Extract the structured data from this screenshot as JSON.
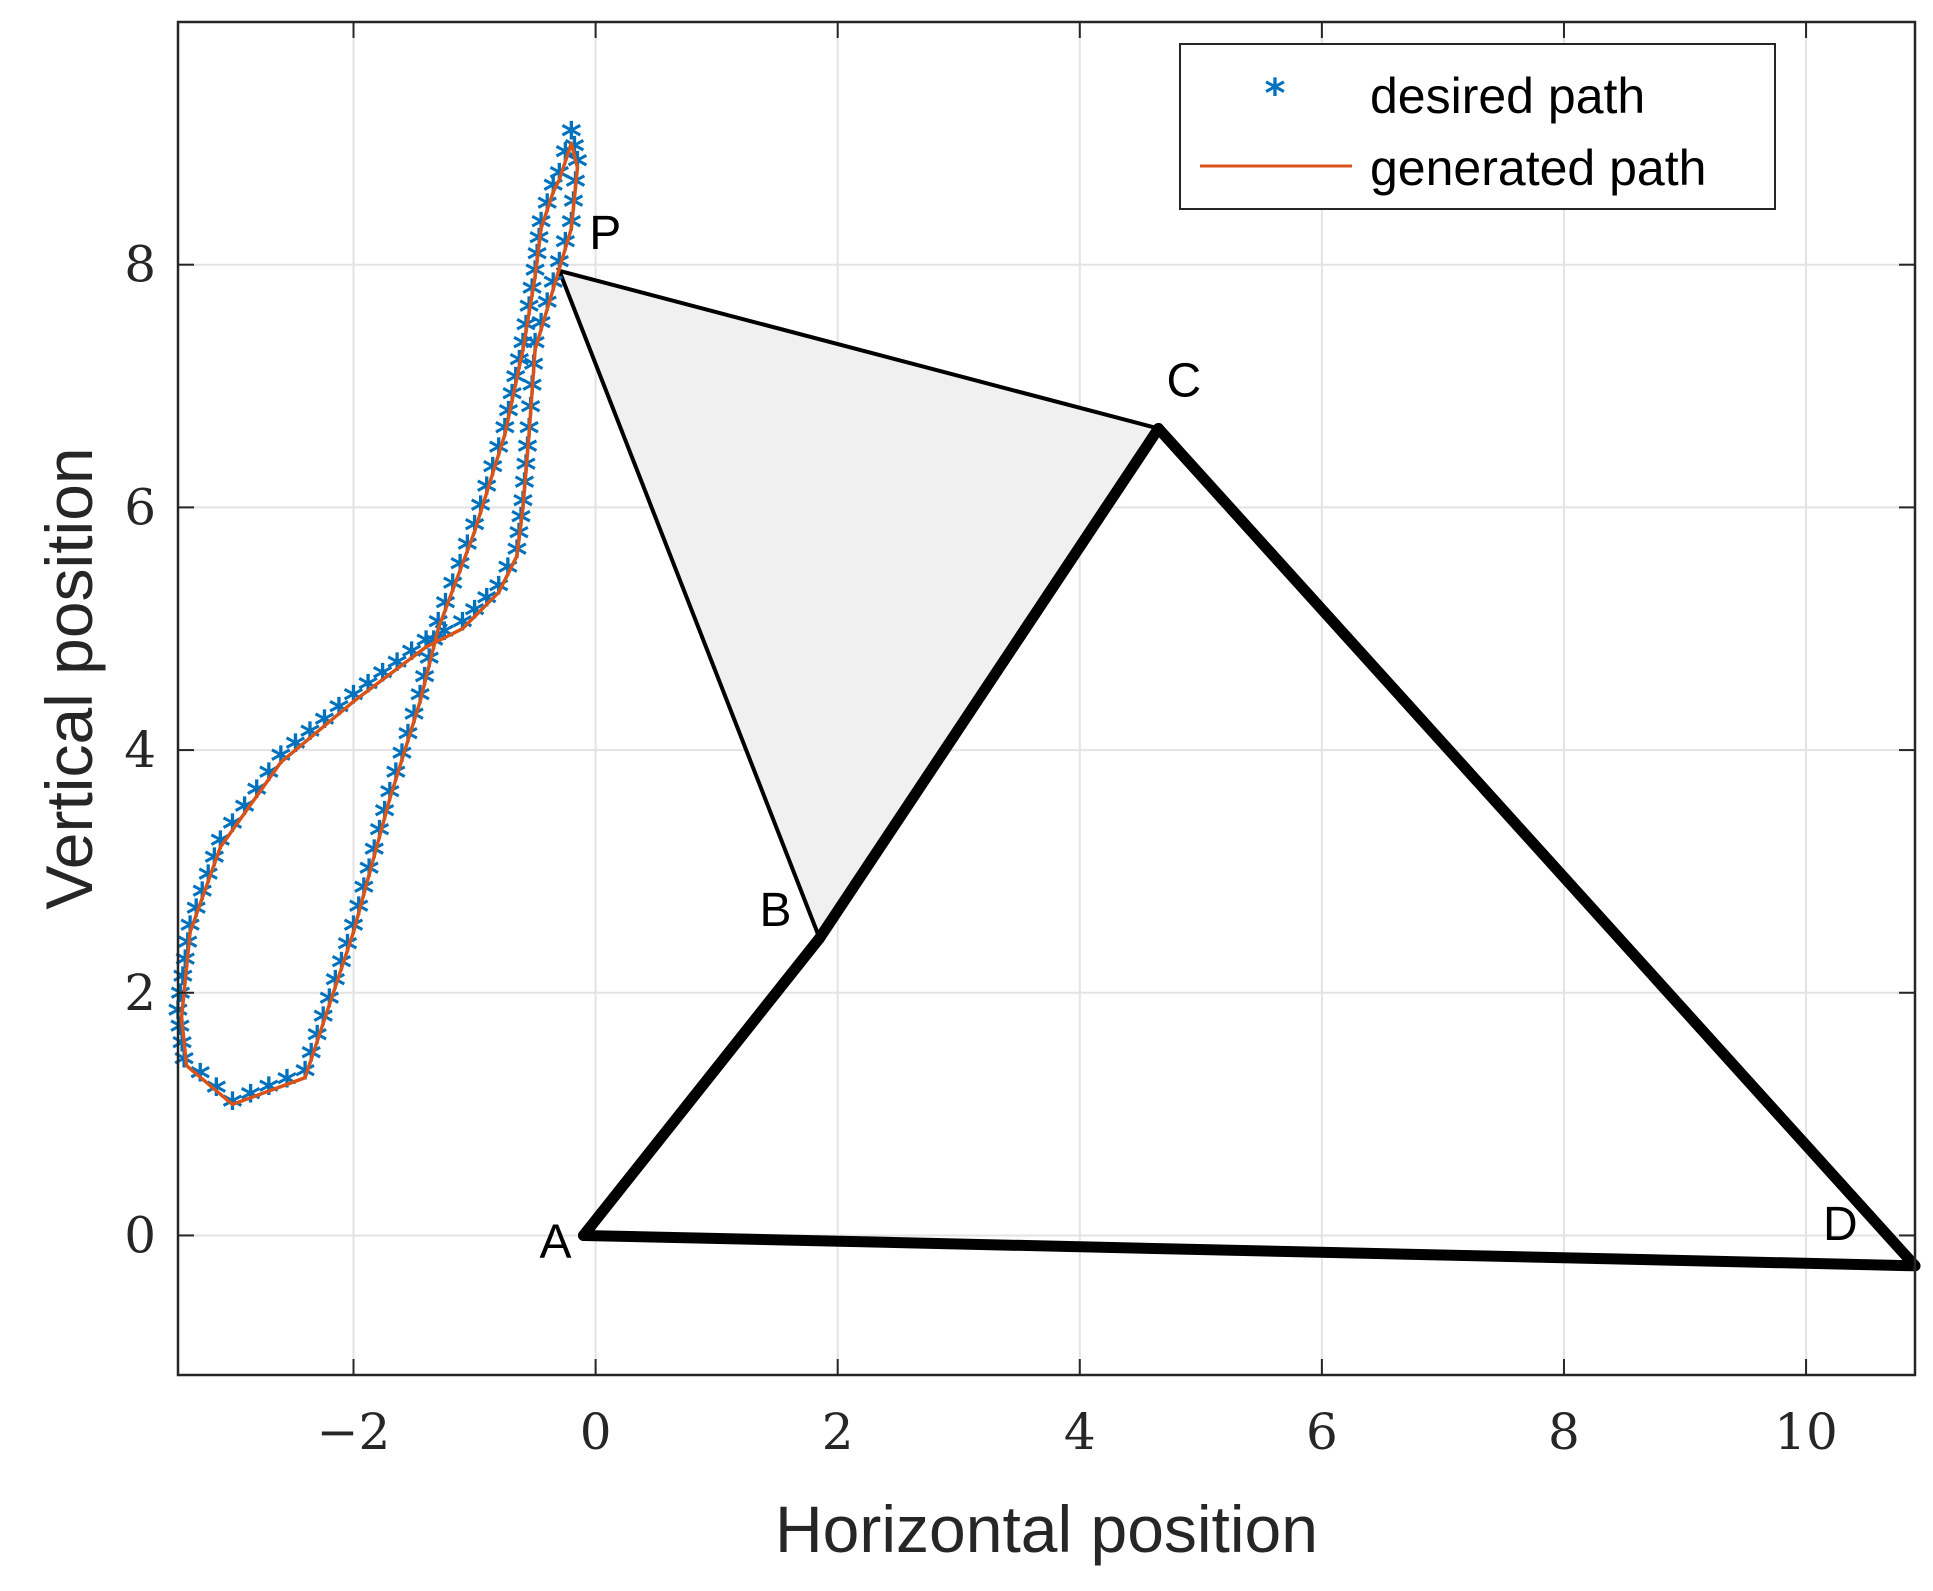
{
  "chart_data": {
    "type": "line",
    "xlabel": "Horizontal position",
    "ylabel": "Vertical position",
    "xlim": [
      -3.45,
      10.9
    ],
    "ylim": [
      -1.15,
      10.0
    ],
    "xticks": [
      -2,
      0,
      2,
      4,
      6,
      8,
      10
    ],
    "xtick_labels": [
      "−2",
      "0",
      "2",
      "4",
      "6",
      "8",
      "10"
    ],
    "yticks": [
      0,
      2,
      4,
      6,
      8
    ],
    "ytick_labels": [
      "0",
      "2",
      "4",
      "6",
      "8"
    ],
    "grid": true,
    "legend_position": "top-right",
    "colors": {
      "desired": "#0072BD",
      "generated": "#D95319",
      "linkage": "#000000",
      "coupler_fill": "#f0f0f0",
      "grid": "#e3e3e3"
    },
    "desired_marker": "*",
    "series": [
      {
        "name": "desired path",
        "style": "marker",
        "x": [
          -0.3,
          -0.2,
          -0.15,
          -0.2,
          -0.35,
          -0.5,
          -0.55,
          -0.6,
          -0.65,
          -0.8,
          -1.1,
          -1.4,
          -2.0,
          -2.6,
          -3.1,
          -3.35,
          -3.45,
          -3.4,
          -3.0,
          -2.4,
          -2.0,
          -1.7,
          -1.45,
          -1.3,
          -1.0,
          -0.75,
          -0.6,
          -0.5,
          -0.45,
          -0.35,
          -0.3
        ],
        "y": [
          8.7,
          9.05,
          8.8,
          8.3,
          7.8,
          7.3,
          6.6,
          6.0,
          5.6,
          5.3,
          5.0,
          4.85,
          4.4,
          3.9,
          3.2,
          2.5,
          1.8,
          1.4,
          1.05,
          1.3,
          2.5,
          3.6,
          4.4,
          5.0,
          5.8,
          6.6,
          7.3,
          7.9,
          8.3,
          8.6,
          8.7
        ]
      },
      {
        "name": "generated path",
        "style": "line",
        "x": [
          -0.3,
          -0.2,
          -0.15,
          -0.2,
          -0.35,
          -0.5,
          -0.55,
          -0.6,
          -0.65,
          -0.8,
          -1.1,
          -1.4,
          -2.0,
          -2.6,
          -3.1,
          -3.35,
          -3.42,
          -3.38,
          -3.0,
          -2.4,
          -2.0,
          -1.7,
          -1.45,
          -1.3,
          -1.0,
          -0.75,
          -0.6,
          -0.5,
          -0.45,
          -0.35,
          -0.3
        ],
        "y": [
          8.7,
          9.0,
          8.8,
          8.3,
          7.8,
          7.3,
          6.6,
          6.0,
          5.6,
          5.3,
          5.0,
          4.85,
          4.4,
          3.9,
          3.2,
          2.5,
          1.8,
          1.4,
          1.08,
          1.3,
          2.5,
          3.6,
          4.4,
          5.0,
          5.8,
          6.6,
          7.3,
          7.9,
          8.3,
          8.6,
          8.7
        ]
      }
    ],
    "linkage": {
      "points": {
        "A": [
          -0.1,
          0.0
        ],
        "B": [
          1.85,
          2.45
        ],
        "C": [
          4.65,
          6.65
        ],
        "D": [
          10.9,
          -0.25
        ],
        "P": [
          -0.3,
          7.95
        ]
      },
      "labels": [
        "A",
        "B",
        "C",
        "D",
        "P"
      ],
      "bars": [
        [
          "A",
          "B"
        ],
        [
          "B",
          "C"
        ],
        [
          "C",
          "D"
        ],
        [
          "A",
          "D"
        ]
      ],
      "coupler": [
        "P",
        "B",
        "C"
      ]
    }
  }
}
